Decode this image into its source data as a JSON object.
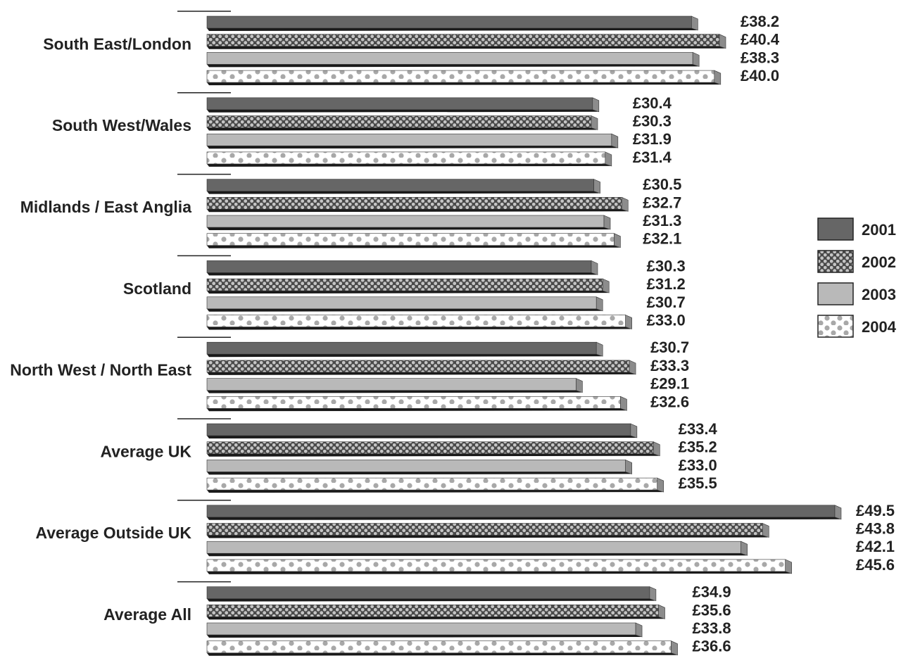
{
  "chart_data": {
    "type": "bar",
    "orientation": "horizontal",
    "categories": [
      "South East/London",
      "South West/Wales",
      "Midlands / East Anglia",
      "Scotland",
      "North West / North East",
      "Average UK",
      "Average  Outside UK",
      "Average All"
    ],
    "series": [
      {
        "name": "2001",
        "values": [
          38.2,
          30.4,
          30.5,
          30.3,
          30.7,
          33.4,
          49.5,
          34.9
        ]
      },
      {
        "name": "2002",
        "values": [
          40.4,
          30.3,
          32.7,
          31.2,
          33.3,
          35.2,
          43.8,
          35.6
        ]
      },
      {
        "name": "2003",
        "values": [
          38.3,
          31.9,
          31.3,
          30.7,
          29.1,
          33.0,
          42.1,
          33.8
        ]
      },
      {
        "name": "2004",
        "values": [
          40.0,
          31.4,
          32.1,
          33.0,
          32.6,
          35.5,
          45.6,
          36.6
        ]
      }
    ],
    "value_labels": [
      [
        "£38.2",
        "£40.4",
        "£38.3",
        "£40.0"
      ],
      [
        "£30.4",
        "£30.3",
        "£31.9",
        "£31.4"
      ],
      [
        "£30.5",
        "£32.7",
        "£31.3",
        "£32.1"
      ],
      [
        "£30.3",
        "£31.2",
        "£30.7",
        "£33.0"
      ],
      [
        "£30.7",
        "£33.3",
        "£29.1",
        "£32.6"
      ],
      [
        "£33.4",
        "£35.2",
        "£33.0",
        "£35.5"
      ],
      [
        "£49.5",
        "£43.8",
        "£42.1",
        "£45.6"
      ],
      [
        "£34.9",
        "£35.6",
        "£33.8",
        "£36.6"
      ]
    ],
    "legend": {
      "placement": "right",
      "entries": [
        {
          "label": "2001",
          "style": "dark-solid"
        },
        {
          "label": "2002",
          "style": "dense-dots"
        },
        {
          "label": "2003",
          "style": "light-solid"
        },
        {
          "label": "2004",
          "style": "sparse-dots"
        }
      ]
    },
    "grid": false,
    "title": "",
    "xlabel": "",
    "ylabel": "",
    "colors": {
      "dark": "#666666",
      "light": "#b9b9b9",
      "dots": "#a8a8a8",
      "shadow": "#1a1a1a",
      "end_cap": "#8c8c8c"
    }
  }
}
